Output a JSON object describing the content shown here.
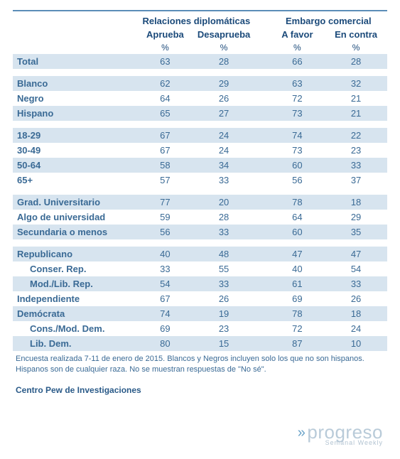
{
  "headers": {
    "group1": "Relaciones diplomáticas",
    "group1_col1": "Aprueba",
    "group1_col2": "Desaprueba",
    "group2": "Embargo comercial",
    "group2_col1": "A favor",
    "group2_col2": "En contra",
    "pct": "%"
  },
  "rows": [
    {
      "type": "band",
      "label": "Total",
      "v": [
        63,
        28,
        66,
        28
      ]
    },
    {
      "type": "spacer"
    },
    {
      "type": "band",
      "label": "Blanco",
      "v": [
        62,
        29,
        63,
        32
      ]
    },
    {
      "type": "plain",
      "label": "Negro",
      "v": [
        64,
        26,
        72,
        21
      ]
    },
    {
      "type": "band",
      "label": "Hispano",
      "v": [
        65,
        27,
        73,
        21
      ]
    },
    {
      "type": "spacer"
    },
    {
      "type": "band",
      "label": "18-29",
      "v": [
        67,
        24,
        74,
        22
      ]
    },
    {
      "type": "plain",
      "label": "30-49",
      "v": [
        67,
        24,
        73,
        23
      ]
    },
    {
      "type": "band",
      "label": "50-64",
      "v": [
        58,
        34,
        60,
        33
      ]
    },
    {
      "type": "plain",
      "label": "65+",
      "v": [
        57,
        33,
        56,
        37
      ]
    },
    {
      "type": "spacer"
    },
    {
      "type": "band",
      "label": "Grad. Universitario",
      "v": [
        77,
        20,
        78,
        18
      ]
    },
    {
      "type": "plain",
      "label": "Algo de universidad",
      "v": [
        59,
        28,
        64,
        29
      ]
    },
    {
      "type": "band",
      "label": "Secundaria o menos",
      "v": [
        56,
        33,
        60,
        35
      ]
    },
    {
      "type": "spacer"
    },
    {
      "type": "band",
      "label": "Republicano",
      "v": [
        40,
        48,
        47,
        47
      ]
    },
    {
      "type": "plain",
      "label": "Conser. Rep.",
      "indent": true,
      "v": [
        33,
        55,
        40,
        54
      ]
    },
    {
      "type": "band",
      "label": "Mod./Lib. Rep.",
      "indent": true,
      "v": [
        54,
        33,
        61,
        33
      ]
    },
    {
      "type": "plain",
      "label": "Independiente",
      "v": [
        67,
        26,
        69,
        26
      ]
    },
    {
      "type": "band",
      "label": "Demócrata",
      "v": [
        74,
        19,
        78,
        18
      ]
    },
    {
      "type": "plain",
      "label": "Cons./Mod. Dem.",
      "indent": true,
      "v": [
        69,
        23,
        72,
        24
      ]
    },
    {
      "type": "band",
      "label": "Lib. Dem.",
      "indent": true,
      "v": [
        80,
        15,
        87,
        10
      ]
    }
  ],
  "footnote": "Encuesta realizada 7-11 de enero de 2015. Blancos y Negros incluyen solo los que no son hispanos. Hispanos son de cualquier raza. No se muestran respuestas de \"No sé\".",
  "source": "Centro Pew de Investigaciones",
  "logo": {
    "brand": "progreso",
    "sub": "Semanal Weekly"
  }
}
